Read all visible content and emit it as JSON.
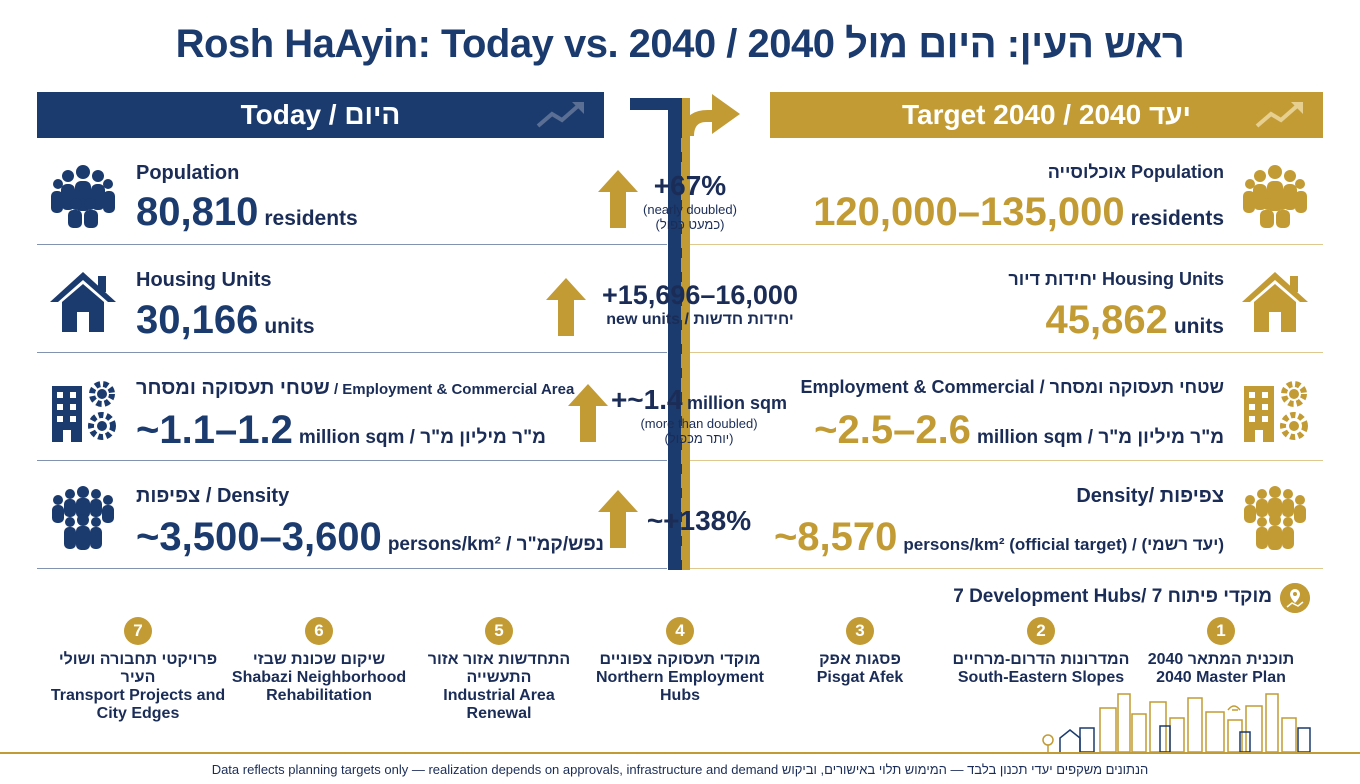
{
  "title": "Rosh HaAyin: Today vs. 2040 / ראש העין: היום מול 2040",
  "today_header": "Today / היום",
  "target_header": "Target 2040 / יעד 2040",
  "rows": [
    {
      "left_label": "Population",
      "left_value": "80,810",
      "left_unit": "residents",
      "center_main": "+67%",
      "center_sub1": "(nearly doubled)",
      "center_sub2": "(כמעט כפול)",
      "right_label": "אוכלוסייה Population",
      "right_value": "120,000–135,000",
      "right_unit": "residents"
    },
    {
      "left_label": "Housing Units",
      "left_value": "30,166",
      "left_unit": "units",
      "center_main": "+15,696–16,000",
      "center_sub1": "new units / יחידות חדשות",
      "right_label": "יחידות דיור Housing Units",
      "right_value": "45,862",
      "right_unit": "units"
    },
    {
      "left_label": "שטחי תעסוקה ומסחר",
      "left_label_en": " / Employment & Commercial Area",
      "left_value": "~1.1–1.2",
      "left_unit": "million sqm / מ\"ר מיליון מ\"ר",
      "center_main": "+~1.4",
      "center_main_unit": "million sqm",
      "center_sub1": "(more than doubled)",
      "center_sub2": "(יותר מכפול)",
      "right_label": "Employment & Commercial / שטחי תעסוקה ומסחר",
      "right_value": "~2.5–2.6",
      "right_unit": "million sqm / מ\"ר מיליון מ\"ר"
    },
    {
      "left_label": "צפיפות / Density",
      "left_value": "~3,500–3,600",
      "left_unit": "persons/km² / נפש/קמ\"ר",
      "center_main": "~+138%",
      "right_label": "Density/ צפיפות",
      "right_value": "~8,570",
      "right_unit": "persons/km² (official target) / (יעד רשמי)"
    }
  ],
  "hubs_title": "7 Development Hubs/ 7 מוקדי פיתוח",
  "hubs": [
    {
      "num": "7",
      "he": "פרויקטי תחבורה ושולי העיר",
      "en": "Transport Projects and City Edges"
    },
    {
      "num": "6",
      "he": "שיקום שכונת שבזי",
      "en": "Shabazi Neighborhood Rehabilitation"
    },
    {
      "num": "5",
      "he": "התחדשות אזור אזור התעשייה",
      "en": "Industrial Area Renewal"
    },
    {
      "num": "4",
      "he": "מוקדי תעסוקה צפוניים",
      "en": "Northern Employment Hubs"
    },
    {
      "num": "3",
      "he": "פסגות אפק",
      "en": "Pisgat Afek"
    },
    {
      "num": "2",
      "he": "המדרונות הדרום-מרחיים",
      "en": "South-Eastern Slopes"
    },
    {
      "num": "1",
      "he": "תוכנית המתאר 2040",
      "en": "2040 Master Plan"
    }
  ],
  "footer": "Data reflects planning targets only — realization depends on approvals, infrastructure and demand  הנתונים משקפים יעדי תכנון בלבד — המימוש תלוי באישורים, וביקוש",
  "colors": {
    "navy": "#1b3a6e",
    "gold": "#c29b34"
  },
  "icons": [
    "people-icon",
    "house-icon",
    "building-gear-icon",
    "crowd-icon",
    "trend-icon",
    "up-arrow-icon",
    "turn-arrow-icon",
    "map-pin-icon",
    "skyline-icon"
  ]
}
